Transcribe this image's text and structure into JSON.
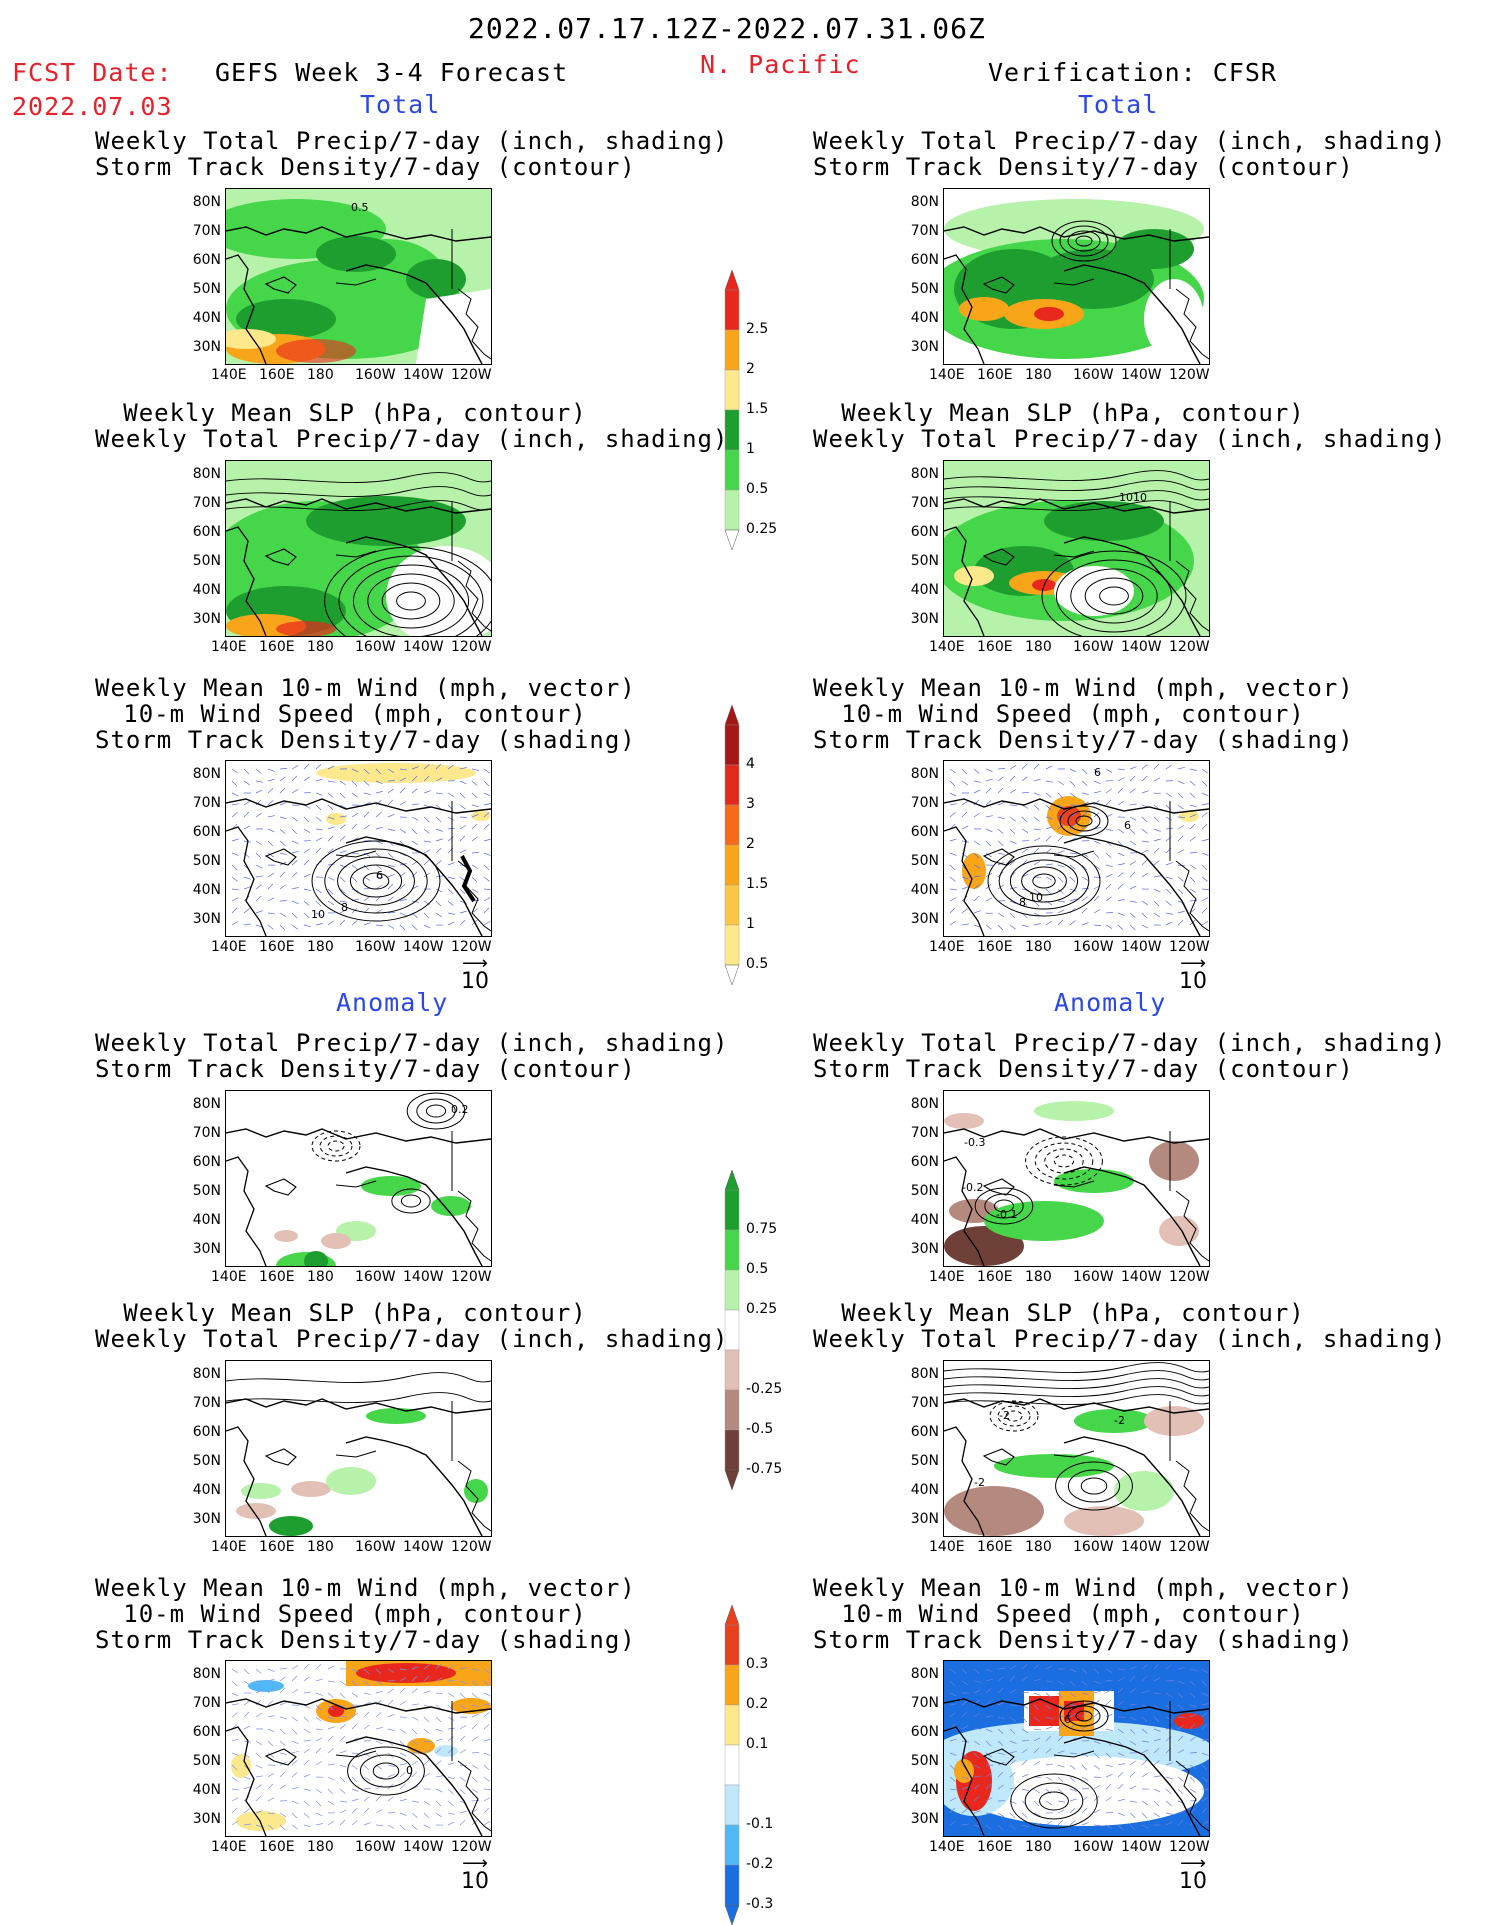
{
  "header": {
    "date_range": "2022.07.17.12Z-2022.07.31.06Z",
    "fcst_date_label": "FCST Date:",
    "fcst_date": "2022.07.03",
    "forecast_title": "GEFS Week 3-4 Forecast",
    "region": "N. Pacific",
    "verification": "Verification: CFSR"
  },
  "sections": {
    "total": "Total",
    "anomaly": "Anomaly"
  },
  "panel_titles": {
    "precip_track": [
      "Weekly Total Precip/7-day (inch, shading)",
      "Storm Track Density/7-day (contour)"
    ],
    "slp_precip": [
      "Weekly Mean SLP (hPa, contour)",
      "Weekly Total Precip/7-day (inch, shading)"
    ],
    "wind_track": [
      "Weekly Mean 10-m Wind (mph, vector)",
      "10-m Wind Speed (mph, contour)",
      "Storm Track Density/7-day (shading)"
    ]
  },
  "axes": {
    "lat": [
      "80N",
      "70N",
      "60N",
      "50N",
      "40N",
      "30N"
    ],
    "lon": [
      "140E",
      "160E",
      "180",
      "160W",
      "140W",
      "120W"
    ]
  },
  "vector_ref": "10",
  "panel_labels": {
    "fc_total_precip": [
      "0.5"
    ],
    "obs_total_slp": [
      "1010"
    ],
    "fc_total_wind": [
      "6",
      "10",
      "8"
    ],
    "obs_total_wind": [
      "6",
      "10",
      "8",
      "6"
    ],
    "fc_anom_precip": [
      "0.2"
    ],
    "obs_anom_precip": [
      "-0.3",
      "-0.2",
      "-0.1"
    ],
    "obs_anom_slp": [
      "-2",
      "-2",
      "-2"
    ],
    "fc_anom_wind": [
      "0"
    ],
    "obs_anom_wind": [
      "6"
    ]
  },
  "colorbars": {
    "total_precip": {
      "labels": [
        "2.5",
        "2",
        "1.5",
        "1",
        "0.5",
        "0.25"
      ],
      "colors": [
        "#e8281c",
        "#f9a51a",
        "#fde88c",
        "#1f9e30",
        "#46d64a",
        "#b6f2a9"
      ]
    },
    "total_track": {
      "labels": [
        "4",
        "3",
        "2",
        "1.5",
        "1",
        "0.5"
      ],
      "colors": [
        "#a51616",
        "#e12a1a",
        "#f66a1c",
        "#f9a51a",
        "#fbc645",
        "#fde88c"
      ]
    },
    "anom_precip": {
      "labels": [
        "0.75",
        "0.5",
        "0.25",
        "-0.25",
        "-0.5",
        "-0.75"
      ],
      "colors": [
        "#1f9e30",
        "#46d64a",
        "#b6f2a9",
        "#ffffff",
        "#e2c0b6",
        "#b58a7e",
        "#6e4038"
      ]
    },
    "anom_track": {
      "labels": [
        "0.3",
        "0.2",
        "0.1",
        "-0.1",
        "-0.2",
        "-0.3"
      ],
      "colors": [
        "#e8401c",
        "#f9a51a",
        "#fde88c",
        "#ffffff",
        "#bfe9fb",
        "#52b8f5",
        "#1b6ee0"
      ]
    }
  }
}
